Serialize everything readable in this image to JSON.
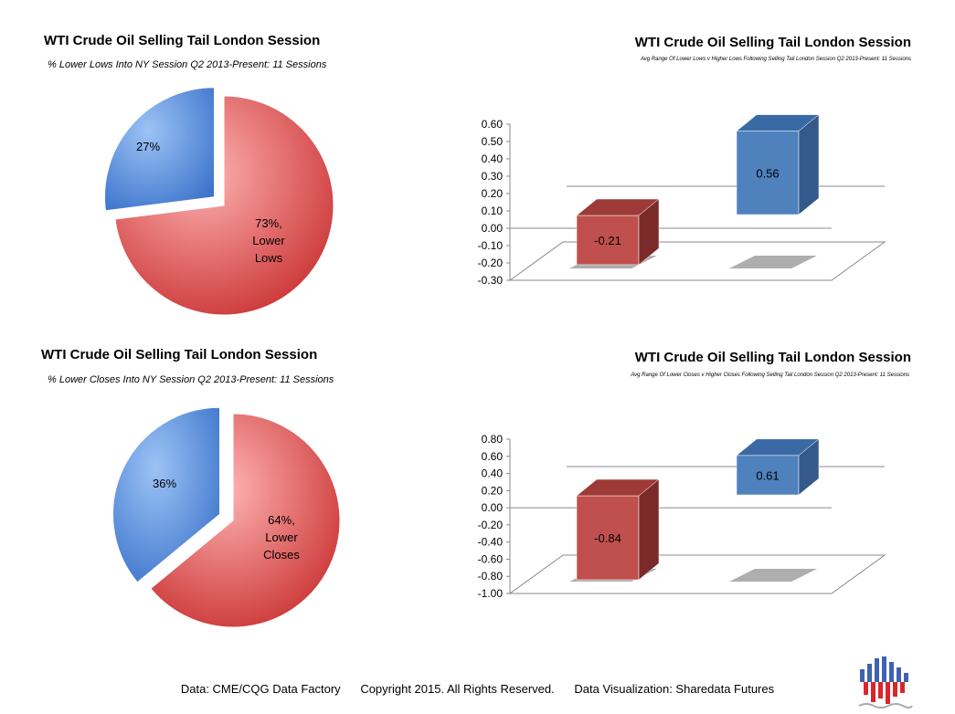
{
  "chart_data": [
    {
      "type": "pie",
      "title": "WTI Crude Oil Selling Tail London Session",
      "subtitle": "% Lower Lows Into NY Session Q2 2013-Present: 11 Sessions",
      "slices": [
        {
          "label": "27%",
          "value": 27,
          "color": "#5a8fd8"
        },
        {
          "label": "73%, Lower Lows",
          "value": 73,
          "color": "#e05b5b"
        }
      ]
    },
    {
      "type": "bar",
      "title": "WTI Crude Oil Selling Tail London Session",
      "subtitle": "Avg Range Of Lower Lows v Higher Lows Following Selling Tail London Session Q2 2013-Present: 11 Sessions",
      "values": [
        -0.21,
        0.56
      ],
      "labels": [
        "-0.21",
        "0.56"
      ],
      "colors": [
        "#c0504d",
        "#4f81bd"
      ],
      "ylim": [
        -0.3,
        0.6
      ],
      "ticks": [
        "0.60",
        "0.50",
        "0.40",
        "0.30",
        "0.20",
        "0.10",
        "0.00",
        "-0.10",
        "-0.20",
        "-0.30"
      ]
    },
    {
      "type": "pie",
      "title": "WTI Crude Oil Selling Tail London Session",
      "subtitle": "% Lower Closes Into NY Session Q2 2013-Present: 11 Sessions",
      "slices": [
        {
          "label": "36%",
          "value": 36,
          "color": "#5a8fd8"
        },
        {
          "label": "64%, Lower Closes",
          "value": 64,
          "color": "#e05b5b"
        }
      ]
    },
    {
      "type": "bar",
      "title": "WTI Crude Oil Selling Tail London Session",
      "subtitle": "Avg Range Of Lower Closes v Higher Closes Following Selling Tail London Session Q2 2013-Present: 11 Sessions",
      "values": [
        -0.84,
        0.61
      ],
      "labels": [
        "-0.84",
        "0.61"
      ],
      "colors": [
        "#c0504d",
        "#4f81bd"
      ],
      "ylim": [
        -1.0,
        0.8
      ],
      "ticks": [
        "0.80",
        "0.60",
        "0.40",
        "0.20",
        "0.00",
        "-0.20",
        "-0.40",
        "-0.60",
        "-0.80",
        "-1.00"
      ]
    }
  ],
  "footer": {
    "source": "Data: CME/CQG Data Factory",
    "copyright": "Copyright 2015. All Rights Reserved.",
    "credit": "Data Visualization: Sharedata Futures"
  },
  "logo": {
    "icon": "sharedata-futures-logo-icon"
  }
}
